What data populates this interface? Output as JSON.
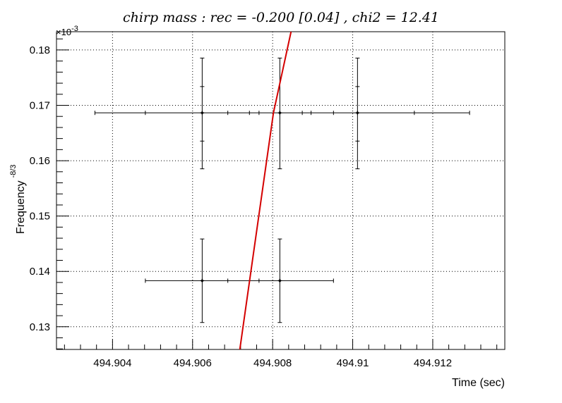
{
  "chart_data": {
    "type": "scatter",
    "title": "chirp mass : rec = -0.200 [0.04] , chi2 = 12.41",
    "xlabel": "Time (sec)",
    "ylabel": "Frequency",
    "ylabel_superscript": "-8/3",
    "y_multiplier_label": "×10",
    "y_multiplier_exponent": "-3",
    "xlim": [
      494.9026,
      494.9138
    ],
    "ylim": [
      0.1259,
      0.1833
    ],
    "x_ticks": [
      494.904,
      494.906,
      494.908,
      494.91,
      494.912
    ],
    "x_tick_labels": [
      "494.904",
      "494.906",
      "494.908",
      "494.91",
      "494.912"
    ],
    "y_ticks": [
      0.13,
      0.14,
      0.15,
      0.16,
      0.17,
      0.18
    ],
    "y_tick_labels": [
      "0.13",
      "0.14",
      "0.15",
      "0.16",
      "0.17",
      "0.18"
    ],
    "grid": true,
    "points": [
      {
        "x": 494.90624,
        "y": 0.16864,
        "xerr_ticks": [
          494.90356,
          494.90482,
          494.90624,
          494.90688,
          494.90742
        ],
        "yerr": [
          0.15853,
          0.16354,
          0.16864,
          0.17339,
          0.17854
        ]
      },
      {
        "x": 494.90818,
        "y": 0.16864,
        "xerr_ticks": [
          494.90766,
          494.90818,
          494.90874,
          494.90896,
          494.90952
        ],
        "yerr": [
          0.15853,
          0.16864,
          0.17854
        ]
      },
      {
        "x": 494.91012,
        "y": 0.16864,
        "xerr_ticks": [
          494.91012,
          494.91154,
          494.91292
        ],
        "yerr": [
          0.15853,
          0.16354,
          0.16864,
          0.17339,
          0.17854
        ]
      },
      {
        "x": 494.90624,
        "y": 0.13832,
        "xerr_ticks": [
          494.90482,
          494.90624,
          494.90688
        ],
        "yerr": [
          0.13077,
          0.13832,
          0.14586
        ]
      },
      {
        "x": 494.90818,
        "y": 0.13832,
        "xerr_ticks": [
          494.90766,
          494.90818,
          494.90952
        ],
        "yerr": [
          0.13077,
          0.13832,
          0.14586
        ]
      }
    ],
    "point_segments": [
      {
        "x": [
          494.90356,
          494.91292
        ],
        "y": 0.16864
      },
      {
        "x": [
          494.90482,
          494.90952
        ],
        "y": 0.13832
      }
    ],
    "fit_line": {
      "name": "",
      "color": "#d40000",
      "x": [
        494.90718,
        494.90802,
        494.90846
      ],
      "y": [
        0.1259,
        0.16864,
        0.1833
      ]
    },
    "colors": {
      "points": "#000000",
      "fit": "#d40000",
      "grid": "#000000",
      "axis": "#000000"
    }
  }
}
